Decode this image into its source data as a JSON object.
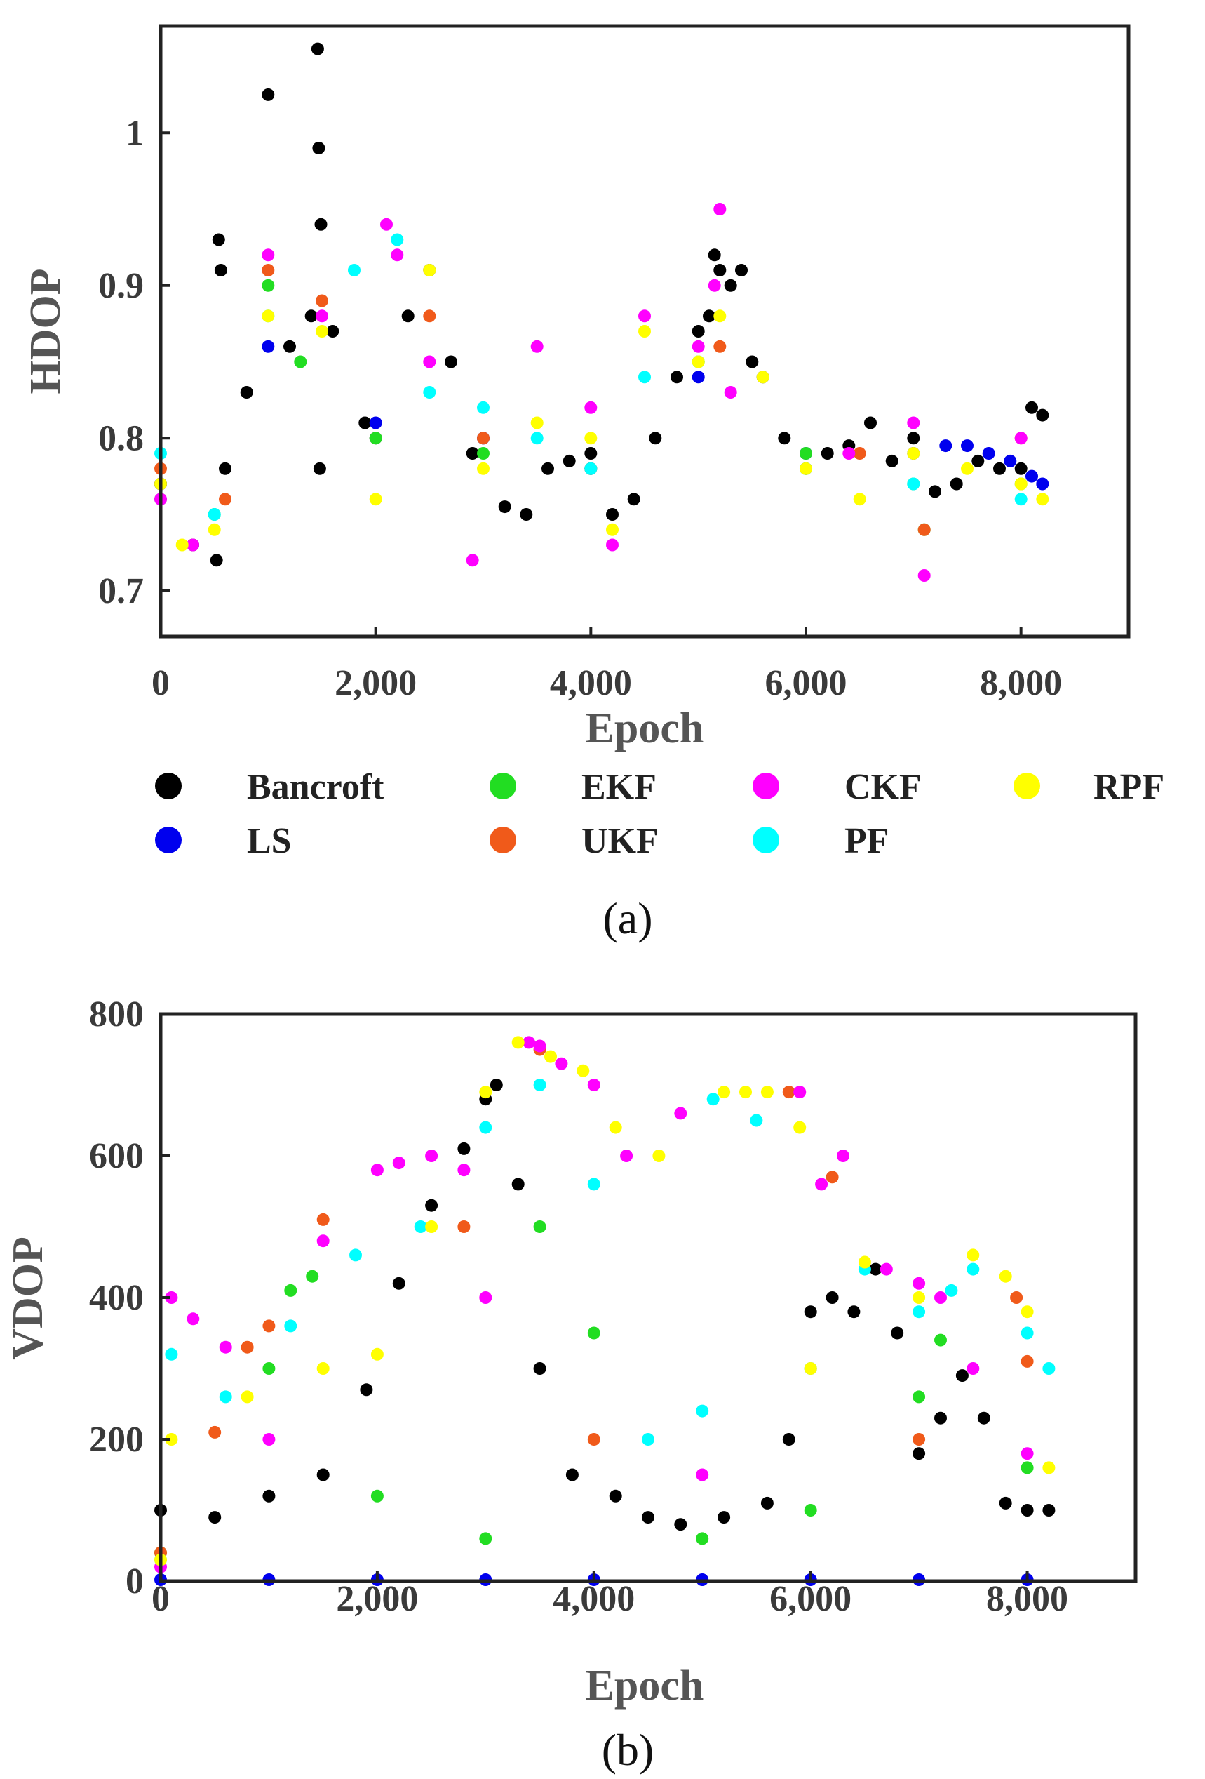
{
  "chart_data": [
    {
      "type": "scatter",
      "panel": "a",
      "caption": "(a)",
      "xlabel": "Epoch",
      "ylabel": "HDOP",
      "xlim": [
        0,
        9000
      ],
      "ylim": [
        0.67,
        1.07
      ],
      "xticks": [
        0,
        2000,
        4000,
        6000,
        8000
      ],
      "xtick_labels": [
        "0",
        "2,000",
        "4,000",
        "6,000",
        "8,000"
      ],
      "yticks": [
        0.7,
        0.8,
        0.9,
        1.0
      ],
      "ytick_labels": [
        "0.7",
        "0.8",
        "0.9",
        "1"
      ],
      "series": [
        {
          "name": "Bancroft",
          "color": "#000000",
          "x": [
            0,
            300,
            520,
            540,
            560,
            600,
            800,
            1000,
            1200,
            1400,
            1460,
            1470,
            1480,
            1490,
            1600,
            1900,
            2000,
            2300,
            2500,
            2700,
            2900,
            3000,
            3200,
            3400,
            3600,
            3800,
            4000,
            4200,
            4400,
            4600,
            4800,
            5000,
            5100,
            5150,
            5200,
            5300,
            5400,
            5500,
            5600,
            5800,
            6000,
            6200,
            6400,
            6600,
            6800,
            7000,
            7200,
            7400,
            7600,
            7800,
            8000,
            8100,
            8200
          ],
          "y": [
            0.77,
            0.73,
            0.72,
            0.93,
            0.91,
            0.78,
            0.83,
            1.025,
            0.86,
            0.88,
            1.055,
            0.99,
            0.78,
            0.94,
            0.87,
            0.81,
            0.8,
            0.88,
            0.91,
            0.85,
            0.79,
            0.8,
            0.755,
            0.75,
            0.78,
            0.785,
            0.79,
            0.75,
            0.76,
            0.8,
            0.84,
            0.87,
            0.88,
            0.92,
            0.91,
            0.9,
            0.91,
            0.85,
            0.84,
            0.8,
            0.78,
            0.79,
            0.795,
            0.81,
            0.785,
            0.8,
            0.765,
            0.77,
            0.785,
            0.78,
            0.78,
            0.82,
            0.815
          ]
        },
        {
          "name": "LS",
          "color": "#0000ee",
          "x": [
            0,
            1000,
            2000,
            3000,
            4000,
            5000,
            6000,
            7000,
            7300,
            7500,
            7700,
            7900,
            8100,
            8200
          ],
          "y": [
            0.77,
            0.86,
            0.81,
            0.8,
            0.78,
            0.84,
            0.79,
            0.79,
            0.795,
            0.795,
            0.79,
            0.785,
            0.775,
            0.77
          ]
        },
        {
          "name": "EKF",
          "color": "#22dd22",
          "x": [
            0,
            500,
            1000,
            1300,
            2000,
            3000,
            4000,
            5000,
            6000,
            7000,
            7100,
            8000
          ],
          "y": [
            0.76,
            0.75,
            0.9,
            0.85,
            0.8,
            0.79,
            0.78,
            0.85,
            0.79,
            0.77,
            0.74,
            0.77
          ]
        },
        {
          "name": "UKF",
          "color": "#f05a1a",
          "x": [
            0,
            600,
            1000,
            1500,
            2500,
            3000,
            4000,
            5200,
            6500,
            7100,
            8000
          ],
          "y": [
            0.78,
            0.76,
            0.91,
            0.89,
            0.88,
            0.8,
            0.78,
            0.86,
            0.79,
            0.74,
            0.8
          ]
        },
        {
          "name": "CKF",
          "color": "#ff00ff",
          "x": [
            0,
            300,
            1000,
            1500,
            2100,
            2200,
            2500,
            2900,
            3500,
            4000,
            4200,
            4500,
            5000,
            5150,
            5200,
            5300,
            6400,
            7000,
            7100,
            8000
          ],
          "y": [
            0.76,
            0.73,
            0.92,
            0.88,
            0.94,
            0.92,
            0.85,
            0.72,
            0.86,
            0.82,
            0.73,
            0.88,
            0.86,
            0.9,
            0.95,
            0.83,
            0.79,
            0.81,
            0.71,
            0.8
          ]
        },
        {
          "name": "PF",
          "color": "#00ffff",
          "x": [
            0,
            500,
            1000,
            1800,
            2200,
            2500,
            3000,
            3500,
            4000,
            4500,
            5000,
            6000,
            7000,
            8000
          ],
          "y": [
            0.79,
            0.75,
            0.88,
            0.91,
            0.93,
            0.83,
            0.82,
            0.8,
            0.78,
            0.84,
            0.85,
            0.78,
            0.77,
            0.76
          ]
        },
        {
          "name": "RPF",
          "color": "#ffff00",
          "x": [
            0,
            200,
            500,
            1000,
            1500,
            2000,
            2500,
            3000,
            3500,
            4000,
            4200,
            4500,
            5000,
            5200,
            5600,
            6000,
            6500,
            7000,
            7500,
            8000,
            8200
          ],
          "y": [
            0.77,
            0.73,
            0.74,
            0.88,
            0.87,
            0.76,
            0.91,
            0.78,
            0.81,
            0.8,
            0.74,
            0.87,
            0.85,
            0.88,
            0.84,
            0.78,
            0.76,
            0.79,
            0.78,
            0.77,
            0.76
          ]
        }
      ]
    },
    {
      "type": "scatter",
      "panel": "b",
      "caption": "(b)",
      "xlabel": "Epoch",
      "ylabel": "VDOP",
      "xlim": [
        0,
        9000
      ],
      "ylim": [
        0,
        800
      ],
      "xticks": [
        0,
        2000,
        4000,
        6000,
        8000
      ],
      "xtick_labels": [
        "0",
        "2,000",
        "4,000",
        "6,000",
        "8,000"
      ],
      "yticks": [
        0,
        200,
        400,
        600,
        800
      ],
      "ytick_labels": [
        "0",
        "200",
        "400",
        "600",
        "800"
      ],
      "series": [
        {
          "name": "Bancroft",
          "color": "#000000",
          "x": [
            0,
            500,
            1000,
            1500,
            1900,
            2200,
            2500,
            2800,
            3000,
            3100,
            3300,
            3500,
            3800,
            4200,
            4500,
            4800,
            5200,
            5600,
            5800,
            6000,
            6200,
            6400,
            6600,
            6800,
            7000,
            7200,
            7400,
            7600,
            7800,
            8000,
            8200
          ],
          "y": [
            100,
            90,
            120,
            150,
            270,
            420,
            530,
            610,
            680,
            700,
            560,
            300,
            150,
            120,
            90,
            80,
            90,
            110,
            200,
            380,
            400,
            380,
            440,
            350,
            180,
            230,
            290,
            230,
            110,
            100,
            100
          ]
        },
        {
          "name": "LS",
          "color": "#0000ee",
          "x": [
            0,
            1000,
            2000,
            3000,
            4000,
            5000,
            6000,
            7000,
            8000
          ],
          "y": [
            2,
            2,
            2,
            2,
            2,
            2,
            2,
            2,
            2
          ]
        },
        {
          "name": "EKF",
          "color": "#22dd22",
          "x": [
            0,
            1000,
            1200,
            1400,
            2000,
            3000,
            3500,
            4000,
            5000,
            6000,
            7000,
            7200,
            8000
          ],
          "y": [
            40,
            300,
            410,
            430,
            120,
            60,
            500,
            350,
            60,
            100,
            260,
            340,
            160
          ]
        },
        {
          "name": "UKF",
          "color": "#f05a1a",
          "x": [
            0,
            500,
            800,
            1000,
            1500,
            2800,
            3500,
            4000,
            5800,
            6000,
            6200,
            7000,
            7900,
            8000
          ],
          "y": [
            40,
            210,
            330,
            360,
            510,
            500,
            750,
            200,
            690,
            300,
            570,
            200,
            400,
            310
          ]
        },
        {
          "name": "CKF",
          "color": "#ff00ff",
          "x": [
            0,
            100,
            300,
            600,
            1000,
            1500,
            2000,
            2200,
            2500,
            2800,
            3000,
            3400,
            3500,
            3700,
            4000,
            4300,
            4800,
            5000,
            5900,
            6100,
            6300,
            6700,
            7000,
            7200,
            7500,
            8000
          ],
          "y": [
            20,
            400,
            370,
            330,
            200,
            480,
            580,
            590,
            600,
            580,
            400,
            760,
            755,
            730,
            700,
            600,
            660,
            150,
            690,
            560,
            600,
            440,
            420,
            400,
            300,
            180
          ]
        },
        {
          "name": "PF",
          "color": "#00ffff",
          "x": [
            0,
            100,
            600,
            1200,
            1800,
            2400,
            3000,
            3500,
            4000,
            4500,
            5000,
            5100,
            5500,
            6000,
            6500,
            7000,
            7300,
            7500,
            8000,
            8200
          ],
          "y": [
            30,
            320,
            260,
            360,
            460,
            500,
            640,
            700,
            560,
            200,
            240,
            680,
            650,
            300,
            440,
            380,
            410,
            440,
            350,
            300
          ]
        },
        {
          "name": "RPF",
          "color": "#ffff00",
          "x": [
            0,
            100,
            800,
            1500,
            2000,
            2500,
            3000,
            3300,
            3600,
            3900,
            4200,
            4600,
            5200,
            5400,
            5600,
            5900,
            6000,
            6500,
            7000,
            7500,
            7800,
            8000,
            8200
          ],
          "y": [
            30,
            200,
            260,
            300,
            320,
            500,
            690,
            760,
            740,
            720,
            640,
            600,
            690,
            690,
            690,
            640,
            300,
            450,
            400,
            460,
            430,
            380,
            160
          ]
        }
      ]
    }
  ],
  "legend": {
    "entries": [
      {
        "label": "Bancroft",
        "color": "#000000"
      },
      {
        "label": "EKF",
        "color": "#22dd22"
      },
      {
        "label": "CKF",
        "color": "#ff00ff"
      },
      {
        "label": "RPF",
        "color": "#ffff00"
      },
      {
        "label": "LS",
        "color": "#0000ee"
      },
      {
        "label": "UKF",
        "color": "#f05a1a"
      },
      {
        "label": "PF",
        "color": "#00ffff"
      }
    ]
  }
}
